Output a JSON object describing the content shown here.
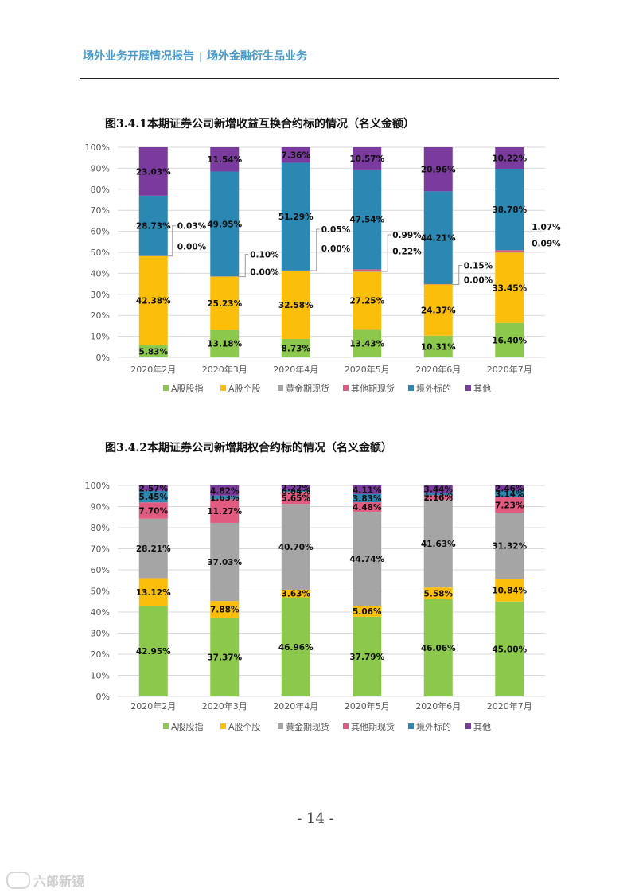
{
  "header": {
    "left": "场外业务开展情况报告",
    "separator": "|",
    "right": "场外金融衍生品业务"
  },
  "page_number": "- 14 -",
  "watermark": "六郎新镜",
  "colors": {
    "A股股指": "#8cc84b",
    "A股个股": "#fbbf0b",
    "黄金期现货": "#a5a5a5",
    "其他期现货": "#e15a80",
    "境外标的": "#2b88b3",
    "其他": "#7a3a9e"
  },
  "chart_data": [
    {
      "type": "bar",
      "stacked": "percent",
      "title": "图3.4.1本期证券公司新增收益互换合约标的情况（名义金额）",
      "categories": [
        "2020年2月",
        "2020年3月",
        "2020年4月",
        "2020年5月",
        "2020年6月",
        "2020年7月"
      ],
      "series": [
        {
          "name": "A股股指",
          "values": [
            5.83,
            13.18,
            8.73,
            13.43,
            10.31,
            16.4
          ],
          "labels": [
            "5.83%",
            "13.18%",
            "8.73%",
            "13.43%",
            "10.31%",
            "16.40%"
          ]
        },
        {
          "name": "A股个股",
          "values": [
            42.38,
            25.23,
            32.58,
            27.25,
            24.37,
            33.45
          ],
          "labels": [
            "42.38%",
            "25.23%",
            "32.58%",
            "27.25%",
            "24.37%",
            "33.45%"
          ]
        },
        {
          "name": "黄金期现货",
          "values": [
            0.0,
            0.0,
            0.0,
            0.22,
            0.0,
            0.09
          ],
          "labels": [
            "0.00%",
            "0.00%",
            "0.00%",
            "0.22%",
            "0.00%",
            "0.09%"
          ]
        },
        {
          "name": "其他期现货",
          "values": [
            0.03,
            0.1,
            0.05,
            0.99,
            0.15,
            1.07
          ],
          "labels": [
            "0.03%",
            "0.10%",
            "0.05%",
            "0.99%",
            "0.15%",
            "1.07%"
          ]
        },
        {
          "name": "境外标的",
          "values": [
            28.73,
            49.95,
            51.29,
            47.54,
            44.21,
            38.78
          ],
          "labels": [
            "28.73%",
            "49.95%",
            "51.29%",
            "47.54%",
            "44.21%",
            "38.78%"
          ]
        },
        {
          "name": "其他",
          "values": [
            23.03,
            11.54,
            7.36,
            10.57,
            20.96,
            10.22
          ],
          "labels": [
            "23.03%",
            "11.54%",
            "7.36%",
            "10.57%",
            "20.96%",
            "10.22%"
          ]
        }
      ],
      "yticks": [
        "0%",
        "10%",
        "20%",
        "30%",
        "40%",
        "50%",
        "60%",
        "70%",
        "80%",
        "90%",
        "100%"
      ],
      "ylim": [
        0,
        100
      ],
      "grid": true,
      "legend": "bottom"
    },
    {
      "type": "bar",
      "stacked": "percent",
      "title": "图3.4.2本期证券公司新增期权合约标的情况（名义金额）",
      "categories": [
        "2020年2月",
        "2020年3月",
        "2020年4月",
        "2020年5月",
        "2020年6月",
        "2020年7月"
      ],
      "series": [
        {
          "name": "A股股指",
          "values": [
            42.95,
            37.37,
            46.96,
            37.79,
            46.06,
            45.0
          ],
          "labels": [
            "42.95%",
            "37.37%",
            "46.96%",
            "37.79%",
            "46.06%",
            "45.00%"
          ]
        },
        {
          "name": "A股个股",
          "values": [
            13.12,
            7.88,
            3.63,
            5.06,
            5.58,
            10.84
          ],
          "labels": [
            "13.12%",
            "7.88%",
            "3.63%",
            "5.06%",
            "5.58%",
            "10.84%"
          ]
        },
        {
          "name": "黄金期现货",
          "values": [
            28.21,
            37.03,
            40.7,
            44.74,
            41.63,
            31.32
          ],
          "labels": [
            "28.21%",
            "37.03%",
            "40.70%",
            "44.74%",
            "41.63%",
            "31.32%"
          ]
        },
        {
          "name": "其他期现货",
          "values": [
            7.7,
            11.27,
            5.65,
            4.48,
            2.16,
            7.23
          ],
          "labels": [
            "7.70%",
            "11.27%",
            "5.65%",
            "4.48%",
            "2.16%",
            "7.23%"
          ]
        },
        {
          "name": "境外标的",
          "values": [
            5.45,
            1.63,
            0.84,
            3.83,
            1.13,
            3.14
          ],
          "labels": [
            "5.45%",
            "1.63%",
            "0.84%",
            "3.83%",
            "1.13%",
            "3.14%"
          ]
        },
        {
          "name": "其他",
          "values": [
            2.57,
            4.82,
            2.22,
            4.11,
            3.44,
            2.46
          ],
          "labels": [
            "2.57%",
            "4.82%",
            "2.22%",
            "4.11%",
            "3.44%",
            "2.46%"
          ]
        }
      ],
      "yticks": [
        "0%",
        "10%",
        "20%",
        "30%",
        "40%",
        "50%",
        "60%",
        "70%",
        "80%",
        "90%",
        "100%"
      ],
      "ylim": [
        0,
        100
      ],
      "grid": true,
      "legend": "bottom"
    }
  ]
}
